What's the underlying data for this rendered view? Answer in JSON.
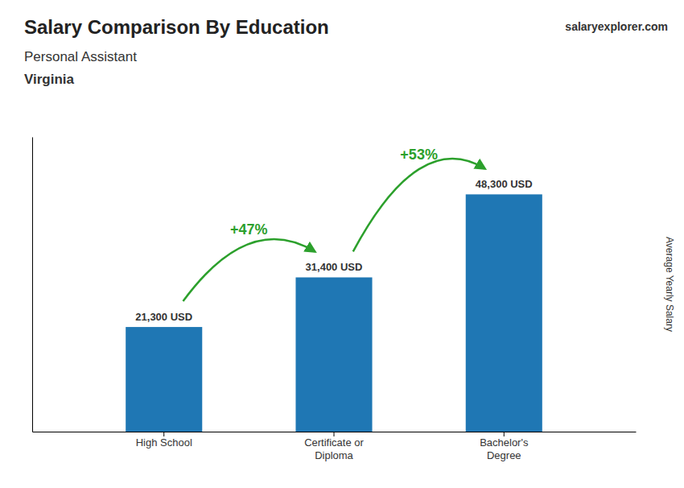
{
  "chart_data": {
    "type": "bar",
    "title": "Salary Comparison By Education",
    "subtitle": "Personal Assistant",
    "location": "Virginia",
    "source": [
      "salary",
      "explorer",
      ".com"
    ],
    "ylabel": "Average Yearly Salary",
    "categories": [
      "High School",
      "Certificate or\nDiploma",
      "Bachelor's\nDegree"
    ],
    "values": [
      21300,
      31400,
      48300
    ],
    "value_labels": [
      "21,300 USD",
      "31,400 USD",
      "48,300 USD"
    ],
    "data_labels": true,
    "annotations": [
      {
        "text": "+47%",
        "between": [
          0,
          1
        ]
      },
      {
        "text": "+53%",
        "between": [
          1,
          2
        ]
      }
    ],
    "ylim": [
      0,
      60000
    ],
    "tick_labels": "x",
    "grid": false
  }
}
